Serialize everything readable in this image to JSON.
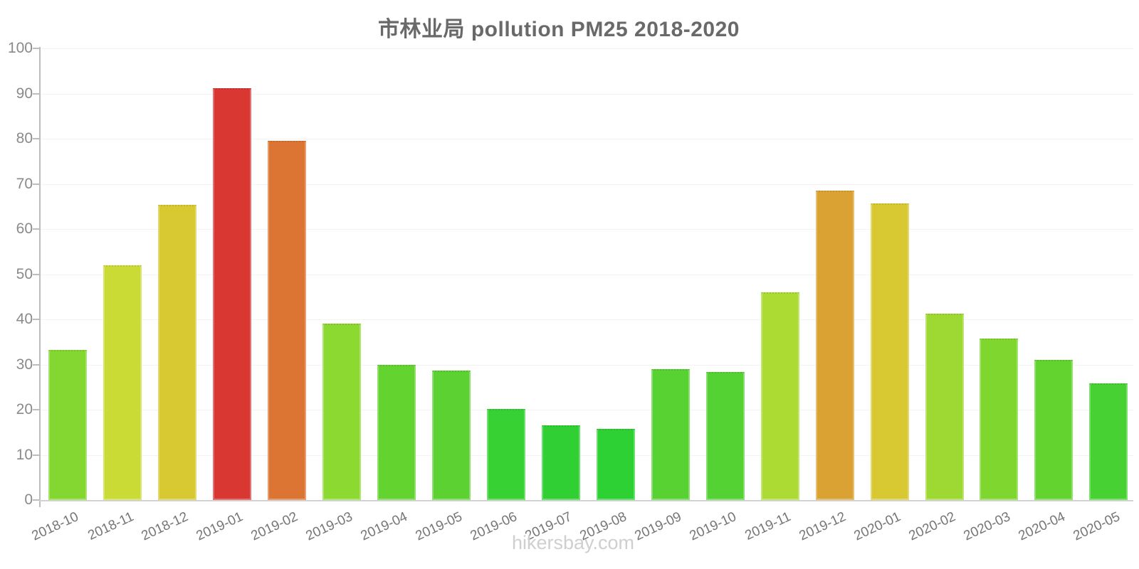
{
  "title": "市林业局 pollution PM25 2018-2020",
  "footer": "hikersbay.com",
  "chart_data": {
    "type": "bar",
    "title": "市林业局 pollution PM25 2018-2020",
    "categories": [
      "2018-10",
      "2018-11",
      "2018-12",
      "2019-01",
      "2019-02",
      "2019-03",
      "2019-04",
      "2019-05",
      "2019-06",
      "2019-07",
      "2019-08",
      "2019-09",
      "2019-10",
      "2019-11",
      "2019-12",
      "2020-01",
      "2020-02",
      "2020-03",
      "2020-04",
      "2020-05"
    ],
    "values": [
      33.3,
      51.9,
      65.4,
      91.2,
      79.5,
      39.1,
      30.0,
      28.7,
      20.2,
      16.5,
      15.7,
      28.9,
      28.3,
      46.0,
      68.5,
      65.6,
      41.3,
      35.7,
      31.1,
      25.8
    ],
    "bar_colors": [
      "#84D730",
      "#CBDB35",
      "#D8C933",
      "#D93732",
      "#DC7434",
      "#8CD931",
      "#62D32F",
      "#5BD232",
      "#37D133",
      "#30D034",
      "#2ED134",
      "#58D233",
      "#55D233",
      "#ACDB33",
      "#D9A233",
      "#D8C933",
      "#9ED933",
      "#7FD62F",
      "#63D32F",
      "#47D133"
    ],
    "xlabel": "",
    "ylabel": "",
    "ylim": [
      0,
      100
    ],
    "y_ticks": [
      0,
      10,
      20,
      30,
      40,
      50,
      60,
      70,
      80,
      90,
      100
    ],
    "grid": true,
    "legend": false,
    "footer": "hikersbay.com"
  },
  "colors": {
    "axis": "#bdbdbd",
    "grid": "#f3f3f3",
    "baseline": "#d2d2d2",
    "y_label": "#8a8a8a",
    "x_label": "#767676",
    "title": "#696969",
    "footer": "#cfcfcf"
  }
}
